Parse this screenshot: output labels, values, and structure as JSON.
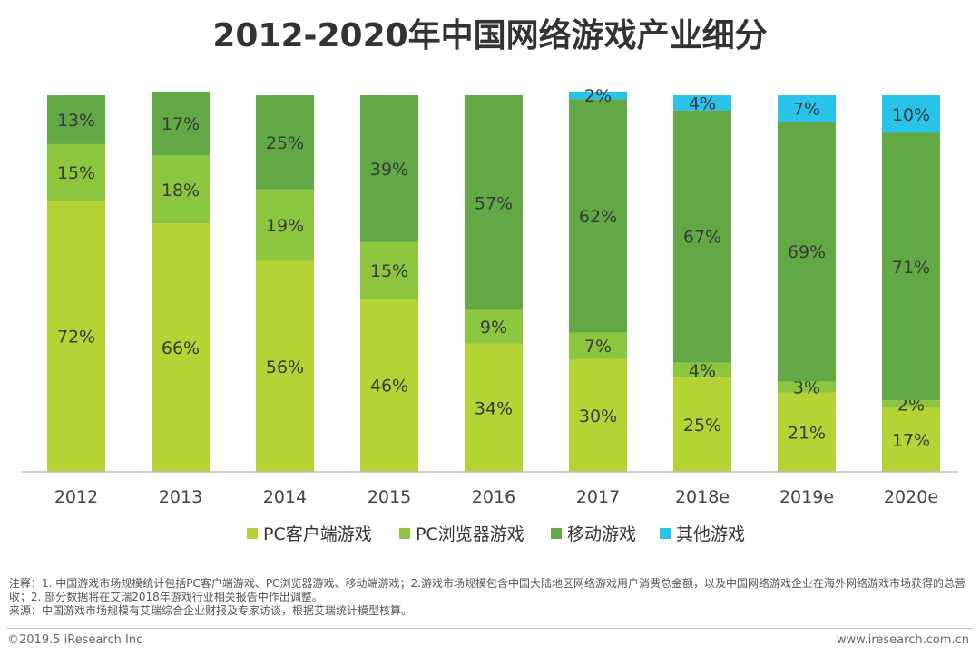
{
  "title": "2012-2020年中国网络游戏产业细分",
  "chart_data": {
    "type": "bar",
    "stacked": true,
    "title": "2012-2020年中国网络游戏产业细分",
    "categories": [
      "2012",
      "2013",
      "2014",
      "2015",
      "2016",
      "2017",
      "2018e",
      "2019e",
      "2020e"
    ],
    "ylim": [
      0,
      100
    ],
    "grid": false,
    "legend_position": "bottom",
    "series": [
      {
        "name": "PC客户端游戏",
        "color": "#b5d335",
        "values": [
          72,
          66,
          56,
          46,
          34,
          30,
          25,
          21,
          17
        ]
      },
      {
        "name": "PC浏览器游戏",
        "color": "#8cc63f",
        "values": [
          15,
          18,
          19,
          15,
          9,
          7,
          4,
          3,
          2
        ]
      },
      {
        "name": "移动游戏",
        "color": "#62a844",
        "values": [
          13,
          17,
          25,
          39,
          57,
          62,
          67,
          69,
          71
        ]
      },
      {
        "name": "其他游戏",
        "color": "#29c2e8",
        "values": [
          0,
          0,
          0,
          0,
          0,
          2,
          4,
          7,
          10
        ]
      }
    ]
  },
  "notes": {
    "note": "注释：1. 中国游戏市场规模统计包括PC客户端游戏、PC浏览器游戏、移动端游戏；2.游戏市场规模包含中国大陆地区网络游戏用户消费总金额，以及中国网络游戏企业在海外网络游戏市场获得的总营收；2. 部分数据将在艾瑞2018年游戏行业相关报告中作出调整。",
    "source": "来源：中国游戏市场规模有艾瑞综合企业财报及专家访谈，根据艾瑞统计模型核算。"
  },
  "footer": {
    "copyright": "©2019.5 iResearch Inc",
    "website": "www.iresearch.com.cn"
  }
}
